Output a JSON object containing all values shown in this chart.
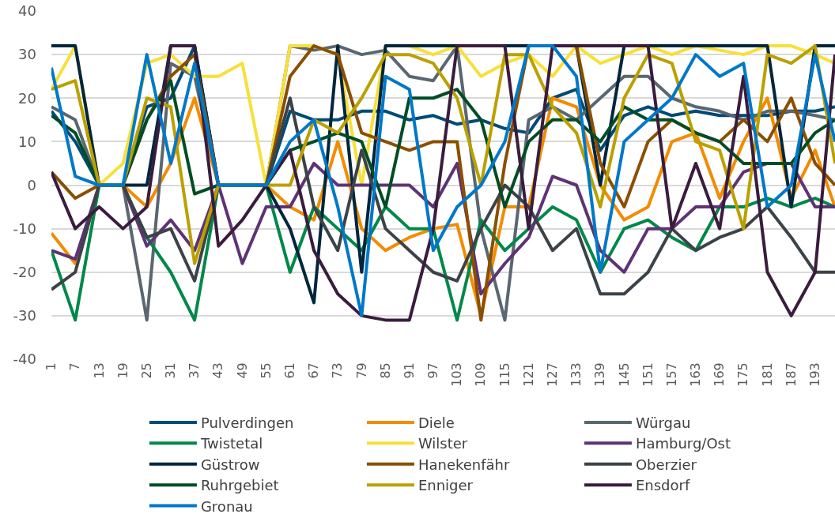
{
  "chart_data": {
    "type": "line",
    "x": [
      1,
      7,
      13,
      19,
      25,
      31,
      37,
      43,
      49,
      55,
      61,
      67,
      73,
      79,
      85,
      91,
      97,
      103,
      109,
      115,
      121,
      127,
      133,
      139,
      145,
      151,
      157,
      163,
      169,
      175,
      181,
      187,
      193,
      198
    ],
    "xlim": [
      1,
      198
    ],
    "xticks": [
      1,
      7,
      13,
      19,
      25,
      31,
      37,
      43,
      49,
      55,
      61,
      67,
      73,
      79,
      85,
      91,
      97,
      103,
      109,
      115,
      121,
      127,
      133,
      139,
      145,
      151,
      157,
      163,
      169,
      175,
      181,
      187,
      193
    ],
    "ylim": [
      -40,
      40
    ],
    "yticks": [
      -40,
      -30,
      -20,
      -10,
      0,
      10,
      20,
      30,
      40
    ],
    "grid": "y",
    "legend": "bottom",
    "line_style": "solid",
    "series": [
      {
        "name": "Pulverdingen",
        "color": "#004b76",
        "values": [
          17,
          10,
          0,
          0,
          18,
          20,
          32,
          0,
          0,
          0,
          17,
          15,
          15,
          17,
          17,
          15,
          16,
          14,
          15,
          13,
          12,
          20,
          22,
          8,
          16,
          18,
          16,
          17,
          16,
          16,
          16,
          17,
          17,
          18
        ]
      },
      {
        "name": "Diele",
        "color": "#f28c00",
        "values": [
          -11,
          -18,
          0,
          0,
          -5,
          5,
          20,
          0,
          0,
          0,
          -5,
          -8,
          10,
          -10,
          -15,
          -12,
          -10,
          -9,
          -30,
          -5,
          -5,
          20,
          18,
          0,
          -8,
          -5,
          10,
          12,
          -3,
          10,
          20,
          -3,
          8,
          -5
        ]
      },
      {
        "name": "Würgau",
        "color": "#5a6770",
        "values": [
          18,
          15,
          0,
          0,
          -31,
          28,
          25,
          0,
          0,
          0,
          32,
          31,
          32,
          30,
          31,
          25,
          24,
          32,
          -10,
          -31,
          15,
          18,
          15,
          20,
          25,
          25,
          20,
          18,
          17,
          15,
          17,
          17,
          16,
          15
        ]
      },
      {
        "name": "Twistetal",
        "color": "#00884b",
        "values": [
          -15,
          -31,
          0,
          0,
          -12,
          -20,
          -31,
          0,
          0,
          0,
          -20,
          -5,
          -10,
          -15,
          -5,
          -10,
          -10,
          -31,
          -8,
          -15,
          -10,
          -5,
          -8,
          -20,
          -10,
          -8,
          -12,
          -15,
          -5,
          -5,
          -3,
          -5,
          -3,
          -5
        ]
      },
      {
        "name": "Wilster",
        "color": "#f7e03a",
        "values": [
          22,
          32,
          0,
          5,
          28,
          30,
          25,
          25,
          28,
          0,
          32,
          32,
          30,
          0,
          32,
          32,
          30,
          32,
          25,
          28,
          30,
          25,
          32,
          28,
          30,
          32,
          30,
          32,
          31,
          30,
          32,
          32,
          30,
          28
        ]
      },
      {
        "name": "Hamburg/Ost",
        "color": "#5e3375",
        "values": [
          -15,
          -17,
          0,
          0,
          -14,
          -8,
          -15,
          0,
          -18,
          -5,
          -5,
          5,
          0,
          0,
          0,
          0,
          -5,
          5,
          -25,
          -18,
          -12,
          2,
          0,
          -15,
          -20,
          -10,
          -10,
          -5,
          -5,
          3,
          5,
          5,
          -5,
          -5
        ]
      },
      {
        "name": "Güstrow",
        "color": "#00263e",
        "values": [
          32,
          32,
          0,
          0,
          0,
          32,
          32,
          0,
          0,
          0,
          -10,
          -27,
          32,
          -20,
          32,
          32,
          32,
          32,
          32,
          32,
          32,
          32,
          32,
          0,
          32,
          32,
          32,
          32,
          32,
          32,
          32,
          -5,
          32,
          32
        ]
      },
      {
        "name": "Hanekenfähr",
        "color": "#8b4f00",
        "values": [
          3,
          -3,
          0,
          0,
          15,
          25,
          30,
          0,
          0,
          0,
          25,
          32,
          30,
          12,
          10,
          8,
          10,
          10,
          -31,
          5,
          32,
          32,
          32,
          5,
          -5,
          10,
          15,
          12,
          10,
          15,
          10,
          20,
          5,
          0
        ]
      },
      {
        "name": "Oberzier",
        "color": "#3c4348",
        "values": [
          -24,
          -20,
          0,
          0,
          -12,
          -10,
          -22,
          0,
          0,
          0,
          20,
          -5,
          -15,
          8,
          -10,
          -15,
          -20,
          -22,
          -10,
          0,
          -5,
          -15,
          -10,
          -25,
          -25,
          -20,
          -10,
          -15,
          -12,
          -10,
          -5,
          -12,
          -20,
          -20
        ]
      },
      {
        "name": "Ruhrgebiet",
        "color": "#004d25",
        "values": [
          16,
          12,
          0,
          0,
          15,
          24,
          -2,
          0,
          0,
          0,
          8,
          10,
          12,
          10,
          -5,
          20,
          20,
          22,
          15,
          -5,
          10,
          15,
          15,
          10,
          18,
          15,
          15,
          12,
          10,
          5,
          5,
          5,
          12,
          15
        ]
      },
      {
        "name": "Enniger",
        "color": "#bba000",
        "values": [
          22,
          24,
          0,
          0,
          20,
          18,
          -18,
          0,
          0,
          0,
          0,
          15,
          12,
          20,
          30,
          30,
          28,
          20,
          0,
          30,
          30,
          18,
          12,
          -5,
          20,
          30,
          28,
          10,
          8,
          -10,
          30,
          28,
          32,
          5
        ]
      },
      {
        "name": "Ensdorf",
        "color": "#3a1c3e",
        "values": [
          3,
          -10,
          -5,
          -10,
          -5,
          32,
          32,
          -14,
          -8,
          0,
          8,
          -15,
          -25,
          -30,
          -31,
          -31,
          -10,
          32,
          32,
          32,
          -10,
          32,
          32,
          32,
          32,
          32,
          -10,
          5,
          -10,
          25,
          -20,
          -30,
          -20,
          30
        ]
      },
      {
        "name": "Gronau",
        "color": "#0078c8",
        "values": [
          27,
          2,
          0,
          0,
          30,
          5,
          28,
          0,
          0,
          0,
          10,
          15,
          -5,
          -30,
          25,
          22,
          -15,
          -5,
          0,
          10,
          32,
          32,
          25,
          -20,
          10,
          15,
          20,
          30,
          25,
          28,
          -5,
          0,
          30,
          10
        ]
      }
    ]
  }
}
